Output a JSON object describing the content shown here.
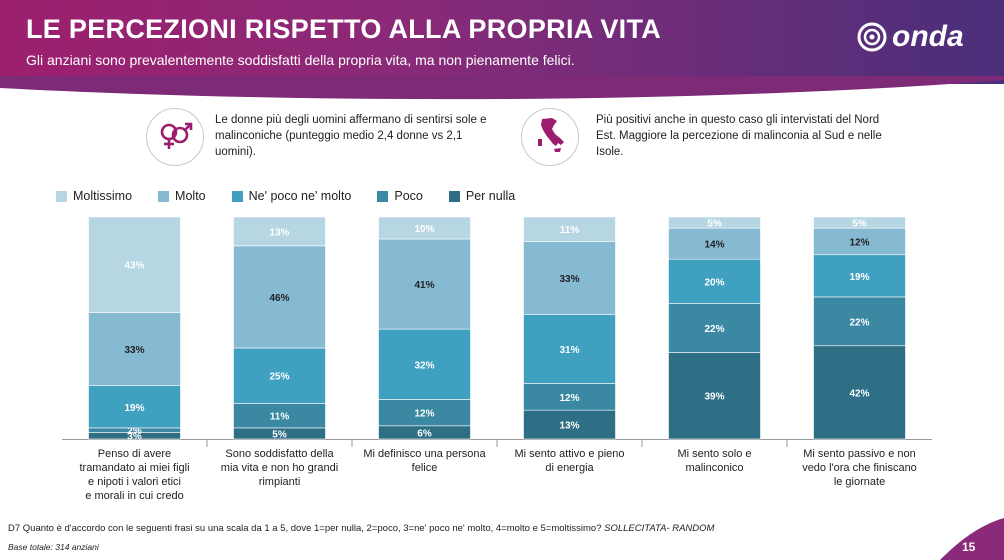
{
  "header": {
    "title": "LE PERCEZIONI RISPETTO ALLA PROPRIA VITA",
    "subtitle": "Gli anziani sono prevalentemente soddisfatti della propria vita, ma non pienamente felici.",
    "logo_text": "onda"
  },
  "callouts": [
    {
      "icon": "gender-symbols-icon",
      "text": "Le donne più degli uomini affermano di sentirsi sole e malinconiche (punteggio medio 2,4 donne vs 2,1 uomini)."
    },
    {
      "icon": "italy-map-icon",
      "text": "Più positivi anche in questo caso gli intervistati del Nord Est. Maggiore la percezione di malinconia al Sud e nelle Isole."
    }
  ],
  "colors": {
    "header_start": "#9c1f6e",
    "header_end": "#4a2f7a",
    "icon_accent": "#9b1e6e"
  },
  "chart_data": {
    "type": "bar",
    "stacked": true,
    "normalized": true,
    "categories": [
      "Penso di avere tramandato ai miei figli e nipoti i valori etici e morali in cui credo",
      "Sono soddisfatto della mia vita e non ho grandi rimpianti",
      "Mi definisco una persona felice",
      "Mi sento attivo e pieno di energia",
      "Mi sento solo e malinconico",
      "Mi sento passivo e non vedo l'ora che finiscano le giornate"
    ],
    "series": [
      {
        "name": "Per nulla",
        "color": "#2f6f86",
        "values": [
          3,
          5,
          6,
          13,
          39,
          42
        ]
      },
      {
        "name": "Poco",
        "color": "#3b88a3",
        "values": [
          2,
          11,
          12,
          12,
          22,
          22
        ]
      },
      {
        "name": "Ne' poco ne' molto",
        "color": "#40a0c0",
        "values": [
          19,
          25,
          32,
          31,
          20,
          19
        ]
      },
      {
        "name": "Molto",
        "color": "#86b9d2",
        "values": [
          33,
          46,
          41,
          33,
          14,
          12
        ]
      },
      {
        "name": "Moltissimo",
        "color": "#b6d6e3",
        "values": [
          43,
          13,
          10,
          11,
          5,
          5
        ]
      }
    ],
    "legend_order": [
      "Moltissimo",
      "Molto",
      "Ne' poco ne' molto",
      "Poco",
      "Per nulla"
    ],
    "value_suffix": "%",
    "legend_position": "top-left"
  },
  "footnote": {
    "question": "D7 Quanto è d'accordo con le seguenti frasi su una scala da 1 a 5, dove 1=per nulla, 2=poco, 3=ne' poco ne' molto, 4=molto e 5=moltissimo?",
    "tag": "SOLLECITATA- RANDOM",
    "base": "Base totale: 314 anziani"
  },
  "page_number": "15"
}
